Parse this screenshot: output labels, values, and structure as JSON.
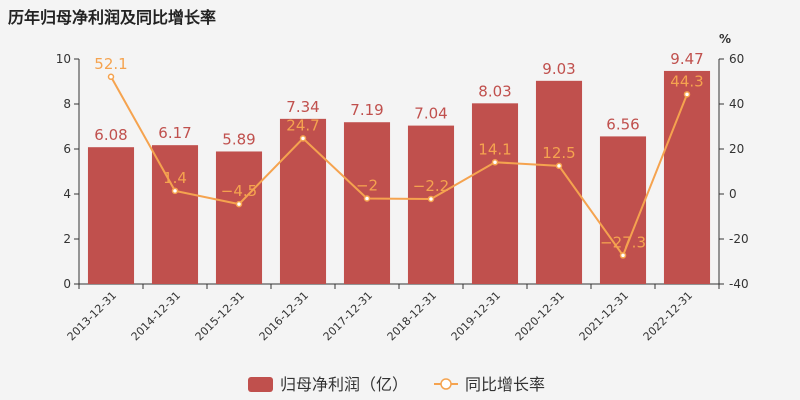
{
  "title": "历年归母净利润及同比增长率",
  "chart_data": {
    "type": "bar",
    "categories": [
      "2013-12-31",
      "2014-12-31",
      "2015-12-31",
      "2016-12-31",
      "2017-12-31",
      "2018-12-31",
      "2019-12-31",
      "2020-12-31",
      "2021-12-31",
      "2022-12-31"
    ],
    "series": [
      {
        "name": "归母净利润（亿）",
        "type": "bar",
        "axis": "left",
        "color": "#c0504d",
        "values": [
          6.08,
          6.17,
          5.89,
          7.34,
          7.19,
          7.04,
          8.03,
          9.03,
          6.56,
          9.47
        ]
      },
      {
        "name": "同比增长率",
        "type": "line",
        "axis": "right",
        "color": "#f5a34f",
        "values": [
          52.1,
          1.4,
          -4.5,
          24.7,
          -2,
          -2.2,
          14.1,
          12.5,
          -27.3,
          44.3
        ]
      }
    ],
    "y_left": {
      "min": 0,
      "max": 10,
      "ticks": [
        0,
        2,
        4,
        6,
        8,
        10
      ]
    },
    "y_right": {
      "min": -40,
      "max": 60,
      "ticks": [
        -40,
        -20,
        0,
        20,
        40,
        60
      ],
      "unit": "%"
    },
    "grid": false,
    "legend_position": "bottom"
  }
}
